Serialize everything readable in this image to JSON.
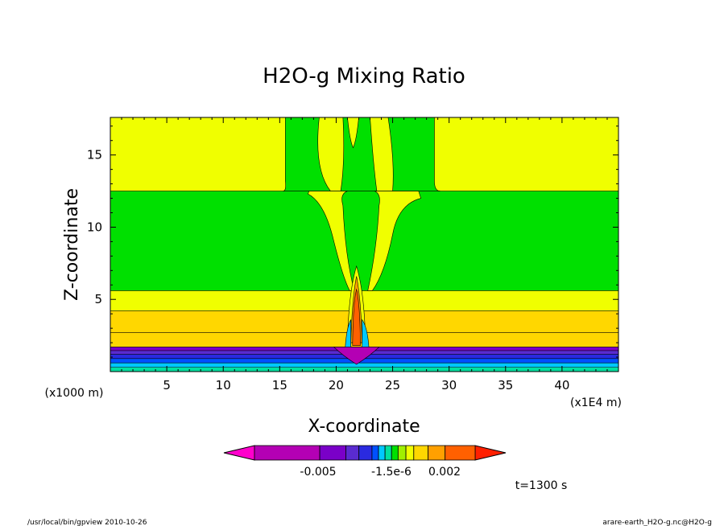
{
  "chart_data": {
    "type": "heatmap",
    "title": "H2O-g Mixing Ratio",
    "xlabel": "X-coordinate",
    "ylabel": "Z-coordinate",
    "x_unit_note": "(x1E4 m)",
    "y_unit_note": "(x1000 m)",
    "xlim": [
      0,
      45
    ],
    "ylim": [
      0,
      17.6
    ],
    "x_ticks": [
      5,
      10,
      15,
      20,
      25,
      30,
      35,
      40
    ],
    "y_ticks": [
      5,
      10,
      15
    ],
    "grid": false,
    "colorbar": {
      "colors": [
        "#ff00cc",
        "#b400b4",
        "#7a00c8",
        "#5a2bd0",
        "#2a2ae0",
        "#0050ff",
        "#00c8ff",
        "#00e0a0",
        "#00e000",
        "#a0f000",
        "#f0ff00",
        "#ffd700",
        "#ffa000",
        "#ff6000",
        "#ff2000"
      ],
      "labels": [
        "-0.005",
        "-1.5e-6",
        "0.002"
      ]
    },
    "bands": [
      {
        "from": 12.5,
        "to": 17.6,
        "color": "#f0ff00"
      },
      {
        "from": 5.6,
        "to": 12.5,
        "color": "#00e000"
      },
      {
        "from": 4.2,
        "to": 5.6,
        "color": "#f0ff00"
      },
      {
        "from": 2.7,
        "to": 4.2,
        "color": "#ffd700"
      },
      {
        "from": 1.7,
        "to": 2.7,
        "color": "#ffd700"
      },
      {
        "from": 1.45,
        "to": 1.7,
        "color": "#7a00c8"
      },
      {
        "from": 1.2,
        "to": 1.45,
        "color": "#5a2bd0"
      },
      {
        "from": 0.9,
        "to": 1.2,
        "color": "#2a2ae0"
      },
      {
        "from": 0.6,
        "to": 0.9,
        "color": "#0050ff"
      },
      {
        "from": 0.3,
        "to": 0.6,
        "color": "#00c8ff"
      },
      {
        "from": 0.0,
        "to": 0.3,
        "color": "#00e0a0"
      }
    ],
    "time_label": "t=1300 s"
  },
  "footer": {
    "left": "/usr/local/bin/gpview  2010-10-26",
    "right": "arare-earth_H2O-g.nc@H2O-g"
  }
}
